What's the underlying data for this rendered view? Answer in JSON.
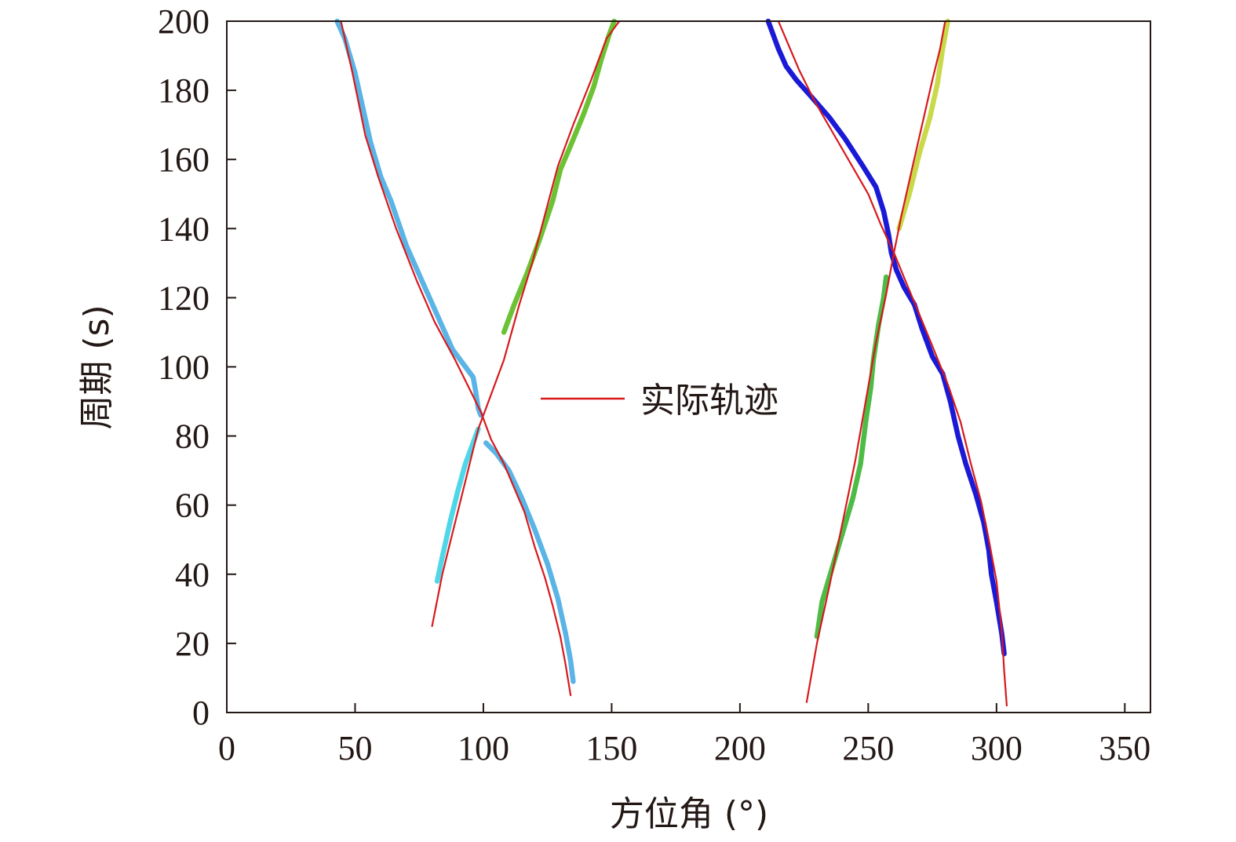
{
  "chart_data": {
    "type": "line",
    "title": "",
    "xlabel": "方位角 (°)",
    "ylabel": "周期 (s)",
    "xlim": [
      0,
      360
    ],
    "ylim": [
      0,
      200
    ],
    "xticks": [
      0,
      50,
      100,
      150,
      200,
      250,
      300,
      350
    ],
    "yticks": [
      0,
      20,
      40,
      60,
      80,
      100,
      120,
      140,
      160,
      180,
      200
    ],
    "grid": false,
    "legend_position": "center",
    "legend": [
      {
        "label": "实际轨迹",
        "color": "#d7191c"
      }
    ],
    "series": [
      {
        "color": "#5ab4e5",
        "points": [
          [
            43,
            200
          ],
          [
            46,
            195
          ],
          [
            50,
            185
          ],
          [
            53,
            175
          ],
          [
            56,
            165
          ],
          [
            60,
            155
          ],
          [
            64,
            148
          ],
          [
            70,
            135
          ],
          [
            76,
            125
          ],
          [
            82,
            115
          ],
          [
            88,
            105
          ],
          [
            93,
            100
          ],
          [
            96,
            97
          ],
          [
            97,
            93
          ],
          [
            98,
            88
          ],
          [
            99,
            86
          ]
        ]
      },
      {
        "color": "#5ab4e5",
        "points": [
          [
            101,
            78
          ],
          [
            105,
            75
          ],
          [
            110,
            70
          ],
          [
            115,
            62
          ],
          [
            120,
            53
          ],
          [
            125,
            43
          ],
          [
            129,
            33
          ],
          [
            132,
            23
          ],
          [
            134,
            15
          ],
          [
            135,
            9
          ]
        ]
      },
      {
        "color": "#4fd6e8",
        "points": [
          [
            82,
            38
          ],
          [
            84,
            45
          ],
          [
            87,
            55
          ],
          [
            90,
            64
          ],
          [
            93,
            72
          ],
          [
            96,
            78
          ],
          [
            98,
            82
          ]
        ]
      },
      {
        "color": "#6cc234",
        "points": [
          [
            108,
            110
          ],
          [
            112,
            118
          ],
          [
            117,
            127
          ],
          [
            122,
            137
          ],
          [
            127,
            148
          ],
          [
            130,
            157
          ],
          [
            134,
            164
          ],
          [
            139,
            173
          ],
          [
            143,
            181
          ],
          [
            146,
            189
          ],
          [
            149,
            196
          ],
          [
            151,
            200
          ]
        ]
      },
      {
        "color": "#1a1ad6",
        "points": [
          [
            211,
            200
          ],
          [
            215,
            192
          ],
          [
            218,
            187
          ],
          [
            222,
            183
          ],
          [
            228,
            178
          ],
          [
            235,
            172
          ],
          [
            241,
            166
          ],
          [
            248,
            158
          ],
          [
            253,
            152
          ],
          [
            256,
            145
          ],
          [
            258,
            138
          ],
          [
            259,
            133
          ],
          [
            261,
            128
          ],
          [
            264,
            123
          ],
          [
            268,
            118
          ],
          [
            271,
            111
          ],
          [
            275,
            103
          ],
          [
            279,
            98
          ],
          [
            282,
            90
          ],
          [
            285,
            80
          ],
          [
            288,
            72
          ],
          [
            292,
            63
          ],
          [
            295,
            55
          ],
          [
            297,
            47
          ],
          [
            298,
            40
          ],
          [
            300,
            32
          ],
          [
            302,
            23
          ],
          [
            303,
            17
          ]
        ]
      },
      {
        "color": "#4dbb45",
        "points": [
          [
            230,
            22
          ],
          [
            232,
            32
          ],
          [
            236,
            42
          ],
          [
            240,
            52
          ],
          [
            244,
            62
          ],
          [
            247,
            72
          ],
          [
            249,
            84
          ],
          [
            251,
            94
          ],
          [
            252,
            102
          ],
          [
            254,
            112
          ],
          [
            256,
            120
          ],
          [
            257,
            126
          ]
        ]
      },
      {
        "color": "#c9d94a",
        "points": [
          [
            262,
            140
          ],
          [
            266,
            150
          ],
          [
            270,
            162
          ],
          [
            274,
            172
          ],
          [
            277,
            182
          ],
          [
            279,
            192
          ],
          [
            281,
            200
          ]
        ]
      },
      {
        "color": "#d7191c",
        "points": [
          [
            44.5,
            200
          ],
          [
            49,
            185
          ],
          [
            54,
            167
          ],
          [
            59,
            155
          ],
          [
            66,
            140
          ],
          [
            74,
            125
          ],
          [
            81,
            113
          ],
          [
            89,
            102
          ],
          [
            95,
            93
          ],
          [
            99,
            87
          ],
          [
            103,
            79
          ],
          [
            108,
            72
          ],
          [
            112,
            65
          ],
          [
            116,
            58
          ],
          [
            120,
            48
          ],
          [
            124,
            39
          ],
          [
            127,
            31
          ],
          [
            130,
            22
          ],
          [
            132,
            14
          ],
          [
            134,
            5
          ]
        ]
      },
      {
        "color": "#d7191c",
        "points": [
          [
            80,
            25
          ],
          [
            84,
            40
          ],
          [
            88,
            52
          ],
          [
            93,
            67
          ],
          [
            98,
            82
          ],
          [
            103,
            92
          ],
          [
            108,
            102
          ],
          [
            114,
            118
          ],
          [
            119,
            130
          ],
          [
            124,
            144
          ],
          [
            129,
            158
          ],
          [
            135,
            170
          ],
          [
            142,
            183
          ],
          [
            148,
            195
          ],
          [
            153,
            200
          ]
        ]
      },
      {
        "color": "#d7191c",
        "points": [
          [
            215,
            200
          ],
          [
            219,
            193
          ],
          [
            223,
            186
          ],
          [
            229,
            177
          ],
          [
            236,
            168
          ],
          [
            243,
            159
          ],
          [
            250,
            150
          ],
          [
            255,
            141
          ],
          [
            260,
            133
          ],
          [
            265,
            124
          ],
          [
            270,
            115
          ],
          [
            275,
            106
          ],
          [
            281,
            95
          ],
          [
            286,
            84
          ],
          [
            290,
            72
          ],
          [
            294,
            61
          ],
          [
            297,
            50
          ],
          [
            300,
            38
          ],
          [
            302,
            24
          ],
          [
            303,
            12
          ],
          [
            304,
            2
          ]
        ]
      },
      {
        "color": "#d7191c",
        "points": [
          [
            226,
            3
          ],
          [
            230,
            20
          ],
          [
            235,
            37
          ],
          [
            240,
            55
          ],
          [
            245,
            73
          ],
          [
            249,
            90
          ],
          [
            253,
            107
          ],
          [
            257,
            121
          ],
          [
            260,
            133
          ],
          [
            263,
            144
          ],
          [
            267,
            157
          ],
          [
            271,
            170
          ],
          [
            275,
            183
          ],
          [
            278,
            192
          ],
          [
            280,
            200
          ]
        ]
      }
    ]
  }
}
